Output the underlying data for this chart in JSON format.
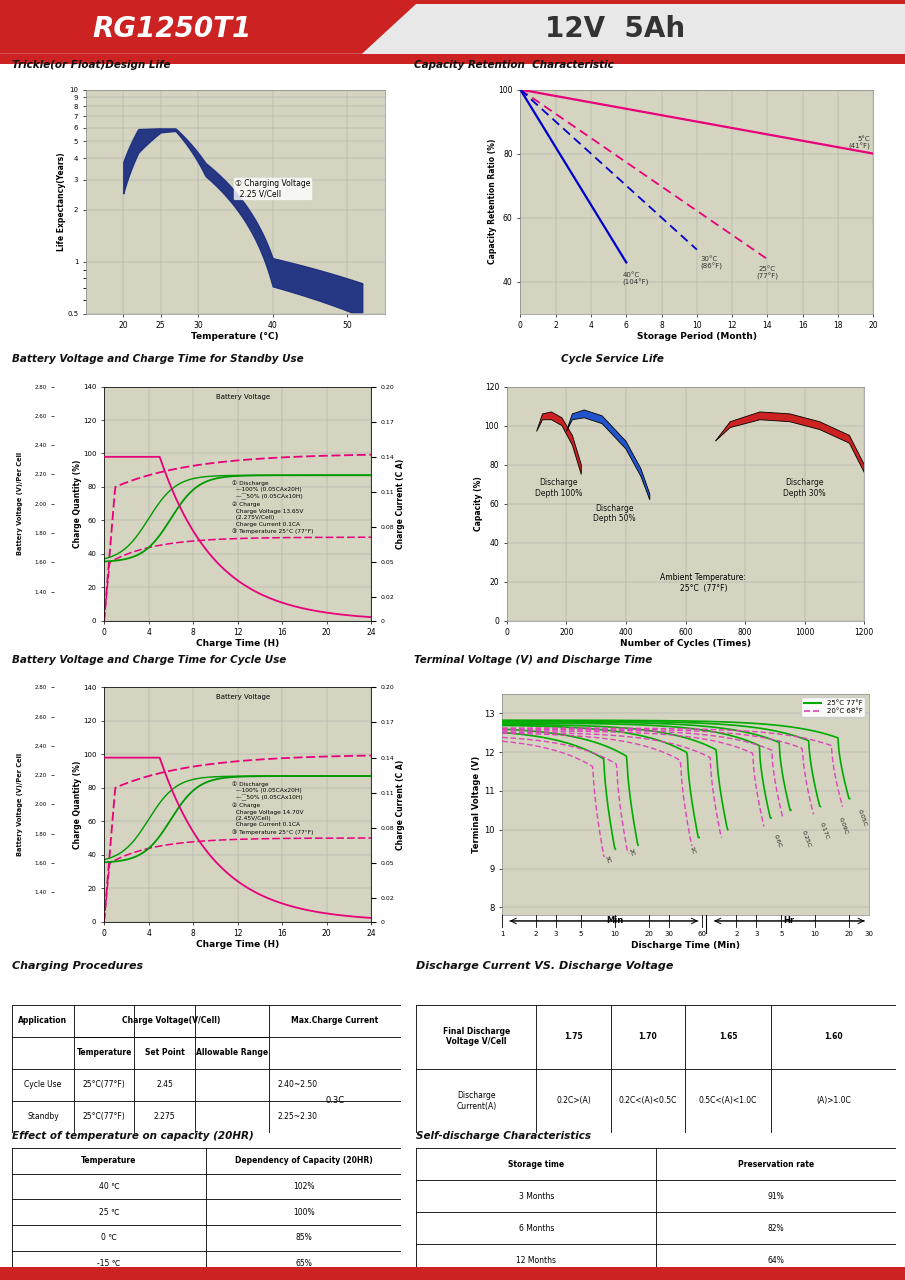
{
  "title_model": "RG1250T1",
  "title_spec": "12V  5Ah",
  "header_red": "#cc2222",
  "trickle_title": "Trickle(or Float)Design Life",
  "trickle_xlabel": "Temperature (°C)",
  "trickle_ylabel": "Life Expectancy(Years)",
  "trickle_annotation": "① Charging Voltage\n  2.25 V/Cell",
  "capacity_title": "Capacity Retention  Characteristic",
  "capacity_xlabel": "Storage Period (Month)",
  "capacity_ylabel": "Capacity Retention Ratio (%)",
  "standby_title": "Battery Voltage and Charge Time for Standby Use",
  "cycle_service_title": "Cycle Service Life",
  "cycle_use_title": "Battery Voltage and Charge Time for Cycle Use",
  "terminal_title": "Terminal Voltage (V) and Discharge Time",
  "charge_proc_title": "Charging Procedures",
  "discharge_vs_title": "Discharge Current VS. Discharge Voltage",
  "temp_effect_title": "Effect of temperature on capacity (20HR)",
  "temp_data": [
    [
      "40 ℃",
      "102%"
    ],
    [
      "25 ℃",
      "100%"
    ],
    [
      "0 ℃",
      "85%"
    ],
    [
      "-15 ℃",
      "65%"
    ]
  ],
  "self_discharge_title": "Self-discharge Characteristics",
  "self_discharge_data": [
    [
      "3 Months",
      "91%"
    ],
    [
      "6 Months",
      "82%"
    ],
    [
      "12 Months",
      "64%"
    ]
  ],
  "panel_bg": "#f0f0e8",
  "plot_bg": "#d4d4c0",
  "footer_red": "#cc2222"
}
